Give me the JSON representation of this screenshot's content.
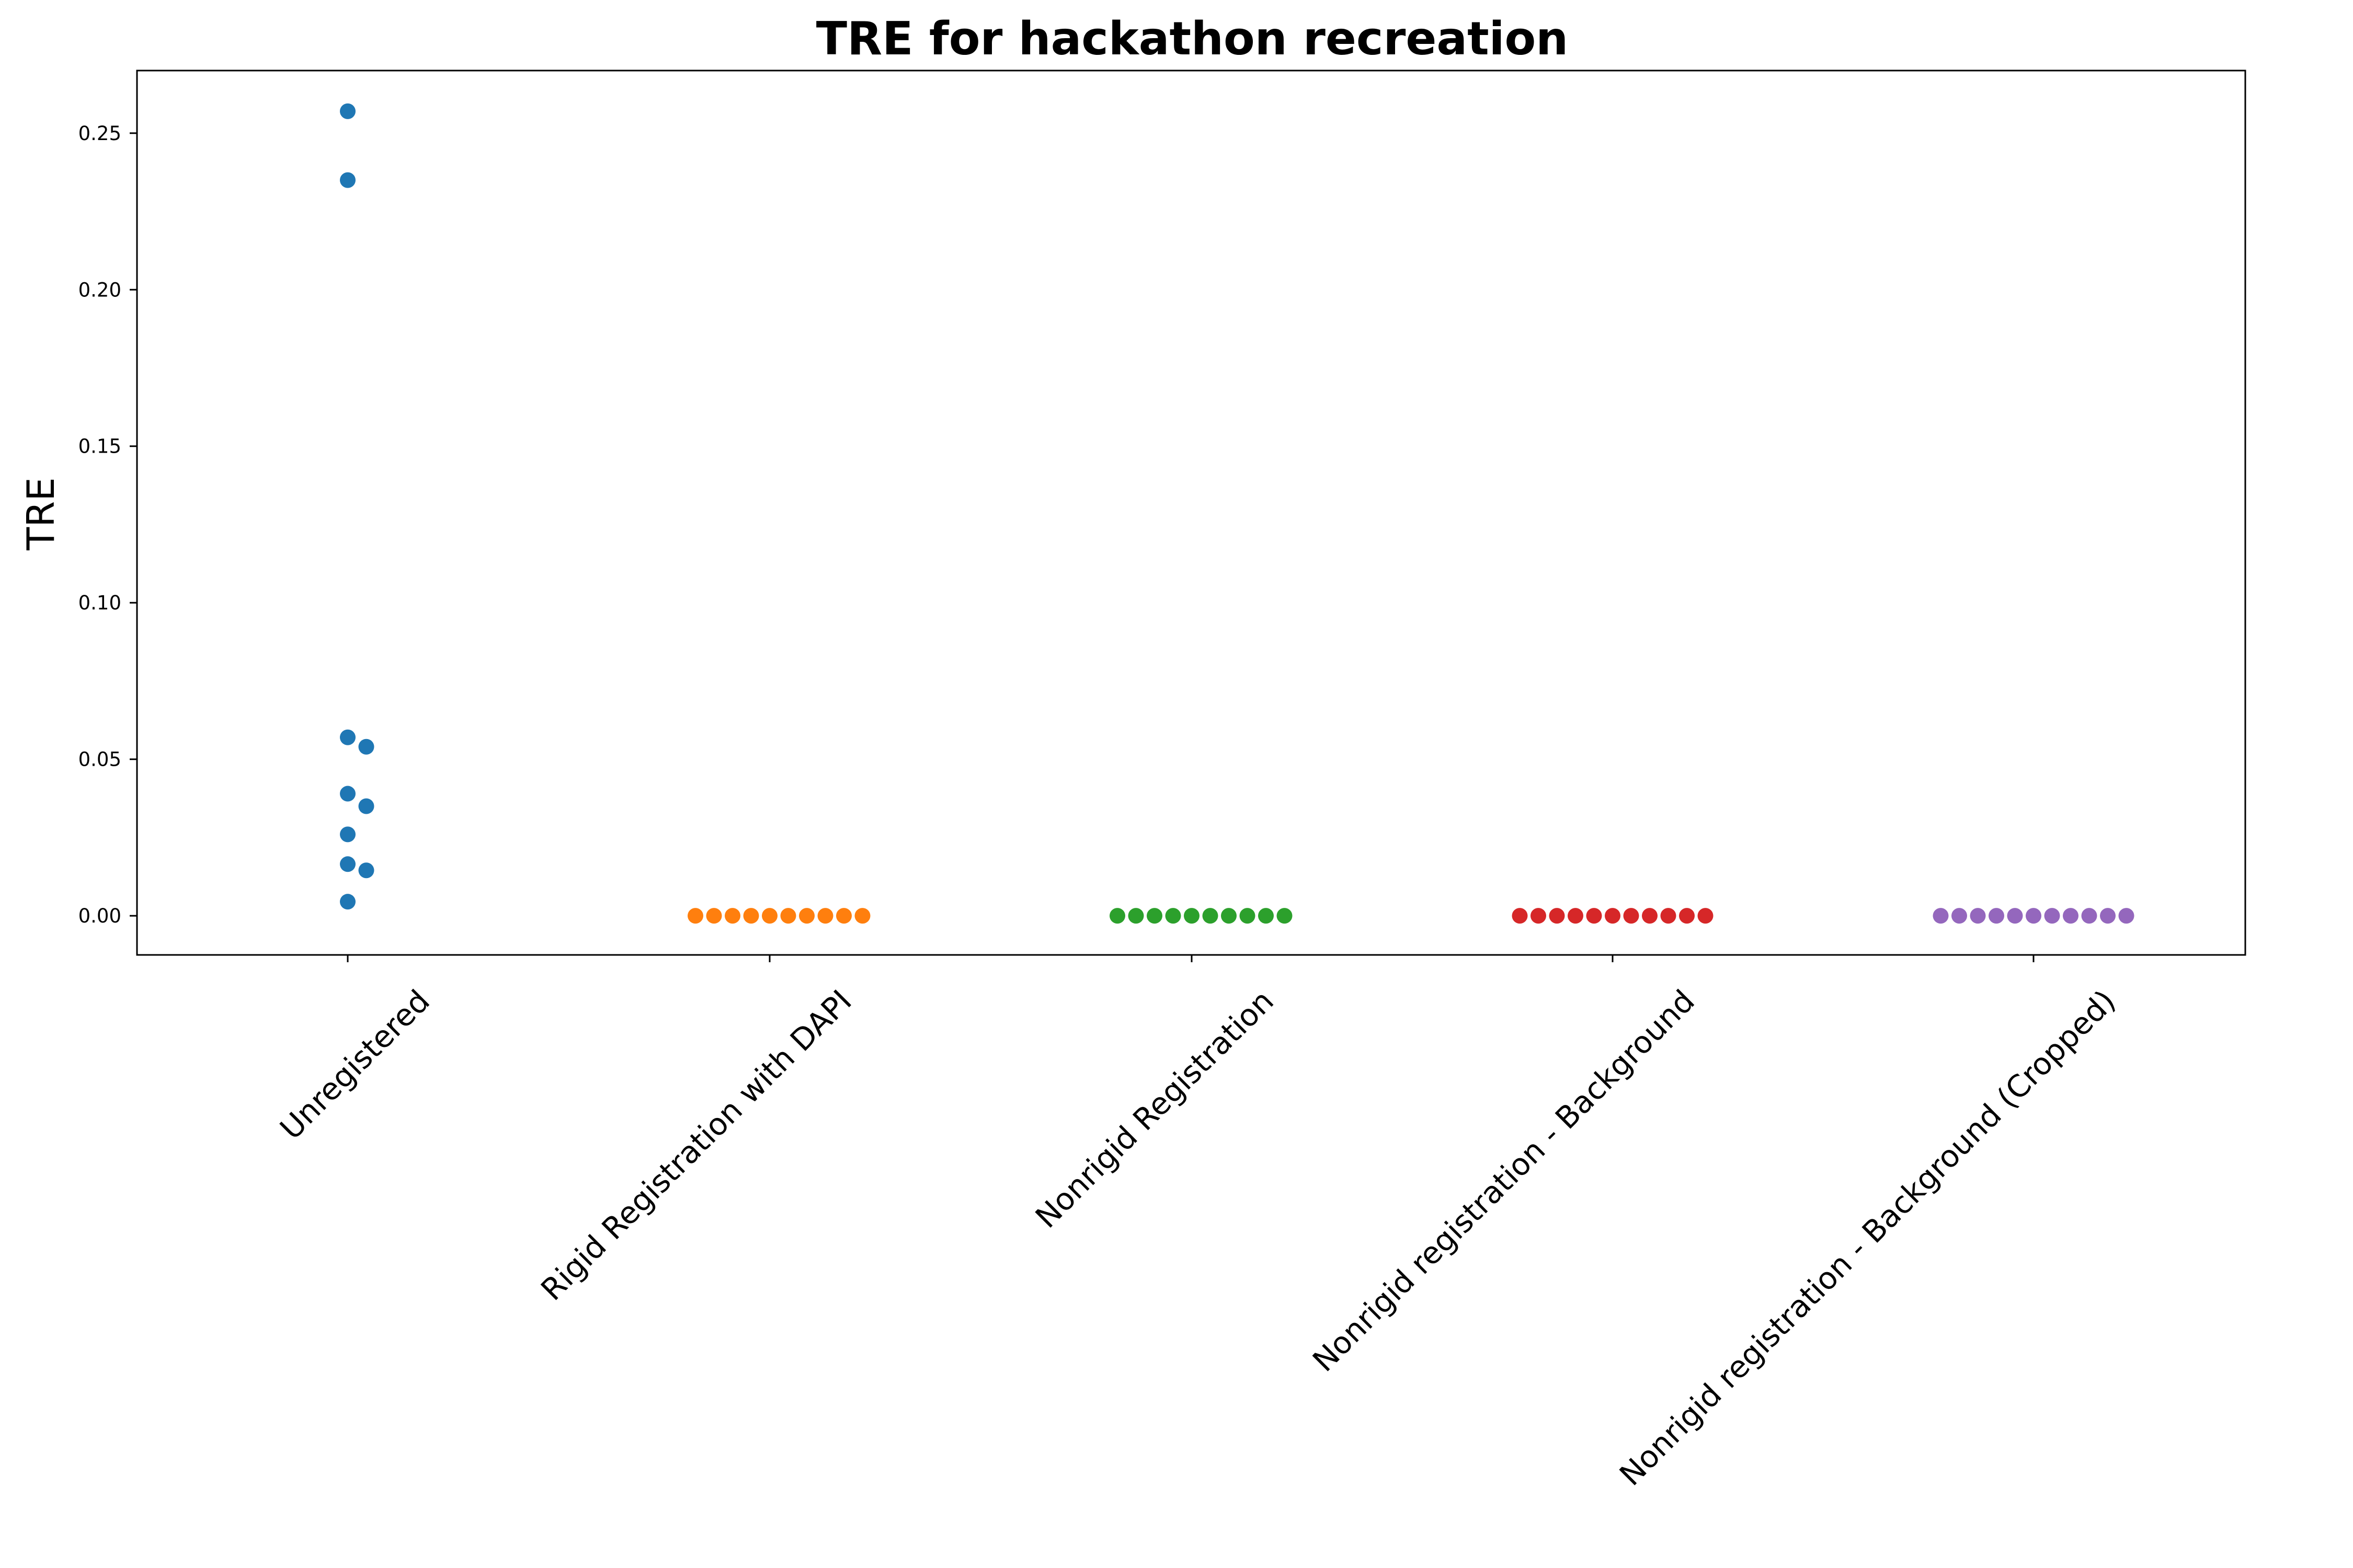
{
  "chart_data": {
    "type": "scatter",
    "title": "TRE for hackathon recreation",
    "xlabel": "",
    "ylabel": "TRE",
    "ylim": [
      -0.0125,
      0.27
    ],
    "grid": false,
    "legend": "none",
    "y_ticks": [
      "0.00",
      "0.05",
      "0.10",
      "0.15",
      "0.20",
      "0.25"
    ],
    "y_tick_values": [
      0,
      0.05,
      0.1,
      0.15,
      0.2,
      0.25
    ],
    "categories": [
      "Unregistered",
      "Rigid Registration with DAPI",
      "Nonrigid Registration",
      "Nonrigid registration - Background",
      "Nonrigid registration - Background (Cropped)"
    ],
    "series": [
      {
        "category": "Unregistered",
        "color": "#1f77b4",
        "values": [
          0.257,
          0.235,
          0.057,
          0.054,
          0.039,
          0.035,
          0.026,
          0.0165,
          0.0145,
          0.0045
        ]
      },
      {
        "category": "Rigid Registration with DAPI",
        "color": "#ff7f0e",
        "values": [
          0,
          0,
          0,
          0,
          0,
          0,
          0,
          0,
          0,
          0
        ]
      },
      {
        "category": "Nonrigid Registration",
        "color": "#2ca02c",
        "values": [
          0,
          0,
          0,
          0,
          0,
          0,
          0,
          0,
          0,
          0
        ]
      },
      {
        "category": "Nonrigid registration - Background",
        "color": "#d62728",
        "values": [
          0,
          0,
          0,
          0,
          0,
          0,
          0,
          0,
          0,
          0,
          0
        ]
      },
      {
        "category": "Nonrigid registration - Background (Cropped)",
        "color": "#9467bd",
        "values": [
          0,
          0,
          0,
          0,
          0,
          0,
          0,
          0,
          0,
          0,
          0
        ]
      }
    ]
  }
}
